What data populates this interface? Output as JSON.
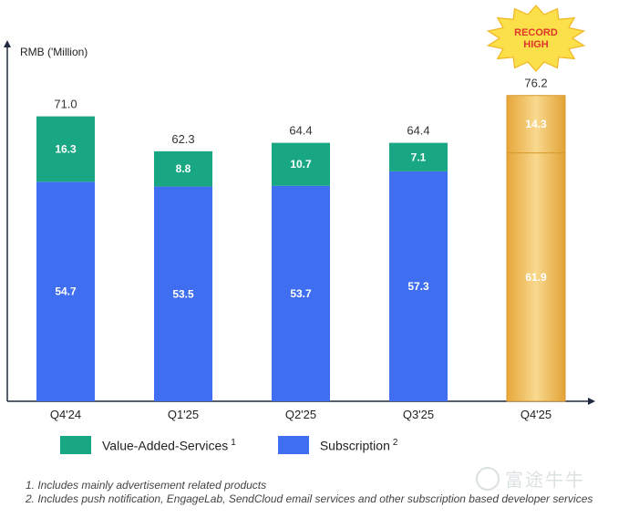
{
  "chart_data": {
    "type": "bar",
    "stacked": true,
    "ylabel": "RMB ('Million)",
    "categories": [
      "Q4'24",
      "Q1'25",
      "Q2'25",
      "Q3'25",
      "Q4'25"
    ],
    "series": [
      {
        "name": "Subscription",
        "values": [
          54.7,
          53.5,
          53.7,
          57.3,
          61.9
        ],
        "color": "#3f6ff0"
      },
      {
        "name": "Value-Added-Services",
        "values": [
          16.3,
          8.8,
          10.7,
          7.1,
          14.3
        ],
        "color": "#19a683"
      }
    ],
    "totals": [
      71.0,
      62.3,
      64.4,
      64.4,
      76.2
    ],
    "value_labels": {
      "subscription": [
        "54.7",
        "53.5",
        "53.7",
        "57.3",
        "61.9"
      ],
      "vas": [
        "16.3",
        "8.8",
        "10.7",
        "7.1",
        "14.3"
      ],
      "totals": [
        "71.0",
        "62.3",
        "64.4",
        "64.4",
        "76.2"
      ]
    },
    "highlight": {
      "category_index": 4,
      "color": "#f0bf57",
      "badge_line1": "RECORD",
      "badge_line2": "HIGH"
    },
    "ylim": [
      0,
      80
    ],
    "grid": false
  },
  "legend": {
    "vas_label": "Value-Added-Services",
    "vas_note": "1",
    "sub_label": "Subscription",
    "sub_note": "2",
    "vas_color": "#19a683",
    "sub_color": "#3f6ff0"
  },
  "footnotes": [
    "1. Includes mainly advertisement related products",
    "2. Includes push notification, EngageLab, SendCloud email services and other subscription based developer services"
  ],
  "watermark": {
    "text": "富途牛牛"
  }
}
